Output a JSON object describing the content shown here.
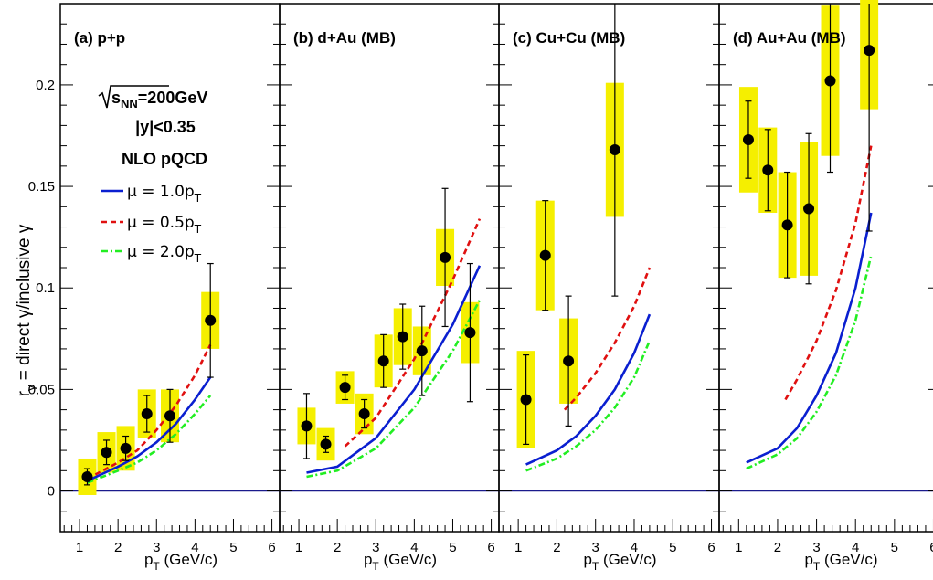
{
  "chart_data": {
    "type": "scatter",
    "ylabel": "r",
    "ylabel_sub": "γ",
    "ylabel_rest": " = direct γ/inclusive γ",
    "yticks": [
      "0",
      "0.05",
      "0.1",
      "0.15",
      "0.2"
    ],
    "xticks": [
      "1",
      "2",
      "3",
      "4",
      "5",
      "6"
    ],
    "xlabel": "p",
    "xlabel_sub": "T",
    "xlabel_rest": " (GeV/c)",
    "ylim": [
      -0.02,
      0.24
    ],
    "xlim": [
      0.5,
      6.2
    ],
    "annotation": {
      "energy_sqrt": "s",
      "energy_sub": "NN",
      "energy_rest": "=200GeV",
      "rapidity": "|y|<0.35"
    },
    "legend": {
      "title": "NLO pQCD",
      "entries": [
        {
          "label": "μ = 1.0p",
          "sub": "T",
          "color": "#0a1fd0",
          "dash": "solid"
        },
        {
          "label": "μ = 0.5p",
          "sub": "T",
          "color": "#e01010",
          "dash": "dashed"
        },
        {
          "label": "μ = 2.0p",
          "sub": "T",
          "color": "#22ee22",
          "dash": "dashdot"
        }
      ]
    },
    "panels": [
      {
        "title": "(a) p+p",
        "points": [
          {
            "x": 1.2,
            "y": 0.007,
            "err": 0.004,
            "sys": 0.009
          },
          {
            "x": 1.7,
            "y": 0.019,
            "err": 0.006,
            "sys": 0.01
          },
          {
            "x": 2.2,
            "y": 0.021,
            "err": 0.006,
            "sys": 0.011
          },
          {
            "x": 2.75,
            "y": 0.038,
            "err": 0.009,
            "sys": 0.012
          },
          {
            "x": 3.35,
            "y": 0.037,
            "err": 0.013,
            "sys": 0.013
          },
          {
            "x": 4.4,
            "y": 0.084,
            "err": 0.028,
            "sys": 0.014
          }
        ],
        "curves": [
          {
            "x": [
              1.2,
              2,
              2.5,
              3,
              3.5,
              4,
              4.4
            ],
            "y": [
              0.005,
              0.012,
              0.017,
              0.024,
              0.033,
              0.045,
              0.056
            ]
          },
          {
            "x": [
              1.2,
              2,
              2.5,
              3,
              3.5,
              4,
              4.4
            ],
            "y": [
              0.006,
              0.014,
              0.02,
              0.03,
              0.042,
              0.057,
              0.072
            ]
          },
          {
            "x": [
              1.2,
              2,
              2.5,
              3,
              3.5,
              4,
              4.4
            ],
            "y": [
              0.004,
              0.01,
              0.014,
              0.02,
              0.028,
              0.038,
              0.047
            ]
          }
        ]
      },
      {
        "title": "(b) d+Au (MB)",
        "points": [
          {
            "x": 1.2,
            "y": 0.032,
            "err": 0.016,
            "sys": 0.009
          },
          {
            "x": 1.7,
            "y": 0.023,
            "err": 0.004,
            "sys": 0.008
          },
          {
            "x": 2.2,
            "y": 0.051,
            "err": 0.006,
            "sys": 0.008
          },
          {
            "x": 2.7,
            "y": 0.038,
            "err": 0.007,
            "sys": 0.01
          },
          {
            "x": 3.2,
            "y": 0.064,
            "err": 0.013,
            "sys": 0.013
          },
          {
            "x": 3.7,
            "y": 0.076,
            "err": 0.016,
            "sys": 0.014
          },
          {
            "x": 4.2,
            "y": 0.069,
            "err": 0.022,
            "sys": 0.012
          },
          {
            "x": 4.8,
            "y": 0.115,
            "err": 0.034,
            "sys": 0.014
          },
          {
            "x": 5.45,
            "y": 0.078,
            "err": 0.034,
            "sys": 0.015
          }
        ],
        "curves": [
          {
            "x": [
              1.2,
              2,
              3,
              4,
              5,
              5.7
            ],
            "y": [
              0.009,
              0.012,
              0.026,
              0.05,
              0.082,
              0.111
            ]
          },
          {
            "x": [
              2.2,
              3,
              4,
              5,
              5.7
            ],
            "y": [
              0.022,
              0.036,
              0.065,
              0.104,
              0.134
            ]
          },
          {
            "x": [
              1.2,
              2,
              3,
              4,
              5,
              5.7
            ],
            "y": [
              0.007,
              0.01,
              0.021,
              0.041,
              0.069,
              0.094
            ]
          }
        ]
      },
      {
        "title": "(c) Cu+Cu (MB)",
        "points": [
          {
            "x": 1.2,
            "y": 0.045,
            "err": 0.022,
            "sys": 0.024
          },
          {
            "x": 1.7,
            "y": 0.116,
            "err": 0.027,
            "sys": 0.027
          },
          {
            "x": 2.3,
            "y": 0.064,
            "err": 0.032,
            "sys": 0.021
          },
          {
            "x": 3.5,
            "y": 0.168,
            "err": 0.072,
            "sys": 0.033
          }
        ],
        "curves": [
          {
            "x": [
              1.2,
              2,
              2.5,
              3,
              3.5,
              4,
              4.4
            ],
            "y": [
              0.013,
              0.02,
              0.027,
              0.037,
              0.05,
              0.068,
              0.087
            ]
          },
          {
            "x": [
              2.2,
              2.5,
              3,
              3.5,
              4,
              4.4
            ],
            "y": [
              0.04,
              0.046,
              0.058,
              0.073,
              0.091,
              0.11
            ]
          },
          {
            "x": [
              1.2,
              2,
              2.5,
              3,
              3.5,
              4,
              4.4
            ],
            "y": [
              0.01,
              0.016,
              0.022,
              0.03,
              0.041,
              0.056,
              0.074
            ]
          }
        ]
      },
      {
        "title": "(d) Au+Au (MB)",
        "points": [
          {
            "x": 1.25,
            "y": 0.173,
            "err": 0.019,
            "sys": 0.026
          },
          {
            "x": 1.75,
            "y": 0.158,
            "err": 0.02,
            "sys": 0.021
          },
          {
            "x": 2.25,
            "y": 0.131,
            "err": 0.026,
            "sys": 0.026
          },
          {
            "x": 2.8,
            "y": 0.139,
            "err": 0.037,
            "sys": 0.033
          },
          {
            "x": 3.35,
            "y": 0.202,
            "err": 0.045,
            "sys": 0.037
          },
          {
            "x": 4.35,
            "y": 0.217,
            "err": 0.089,
            "sys": 0.029
          }
        ],
        "curves": [
          {
            "x": [
              1.2,
              2,
              2.5,
              3,
              3.5,
              4,
              4.4
            ],
            "y": [
              0.014,
              0.021,
              0.031,
              0.047,
              0.068,
              0.1,
              0.137
            ]
          },
          {
            "x": [
              2.2,
              2.5,
              3,
              3.5,
              4,
              4.4
            ],
            "y": [
              0.045,
              0.055,
              0.074,
              0.099,
              0.132,
              0.17
            ]
          },
          {
            "x": [
              1.2,
              2,
              2.5,
              3,
              3.5,
              4,
              4.4
            ],
            "y": [
              0.011,
              0.018,
              0.026,
              0.039,
              0.057,
              0.084,
              0.116
            ]
          }
        ]
      }
    ]
  }
}
